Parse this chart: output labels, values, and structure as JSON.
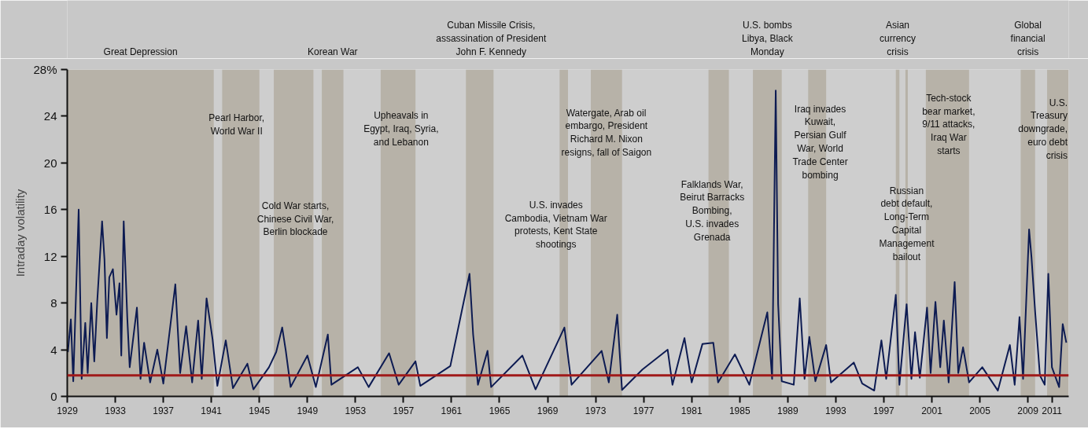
{
  "chart_data": {
    "type": "line",
    "ylabel": "Intraday volatility",
    "xlim": [
      1929,
      2012.4
    ],
    "xticks": [
      1929,
      1933,
      1937,
      1941,
      1945,
      1949,
      1953,
      1957,
      1961,
      1965,
      1969,
      1973,
      1977,
      1981,
      1985,
      1989,
      1993,
      1997,
      2001,
      2005,
      2009,
      2011
    ],
    "ylim": [
      0,
      28
    ],
    "yticks": [
      0,
      4,
      8,
      12,
      16,
      20,
      24,
      {
        "value": 28,
        "label": "28%"
      }
    ],
    "x": [
      1929.05,
      1929.3,
      1929.5,
      1929.95,
      1930.2,
      1930.5,
      1930.7,
      1931.0,
      1931.25,
      1931.5,
      1931.9,
      1932.1,
      1932.3,
      1932.5,
      1932.8,
      1933.1,
      1933.35,
      1933.5,
      1933.7,
      1934.0,
      1934.2,
      1934.8,
      1935.1,
      1935.4,
      1935.9,
      1936.5,
      1937.0,
      1938.0,
      1938.4,
      1938.9,
      1939.4,
      1939.9,
      1940.2,
      1940.6,
      1941.1,
      1941.5,
      1942.2,
      1942.8,
      1944.0,
      1944.5,
      1945.8,
      1946.4,
      1946.9,
      1947.2,
      1947.6,
      1949.0,
      1949.7,
      1950.7,
      1951.0,
      1953.2,
      1954.1,
      1955.8,
      1956.6,
      1958.0,
      1958.4,
      1960.9,
      1962.5,
      1962.8,
      1963.2,
      1964.0,
      1964.3,
      1966.9,
      1968.0,
      1970.4,
      1971.0,
      1973.5,
      1974.1,
      1974.8,
      1975.2,
      1976.9,
      1979.0,
      1979.4,
      1980.4,
      1981.0,
      1981.9,
      1982.8,
      1983.2,
      1984.6,
      1985.8,
      1987.3,
      1987.7,
      1988.0,
      1988.2,
      1988.5,
      1989.5,
      1990.0,
      1990.4,
      1990.8,
      1991.3,
      1992.2,
      1992.6,
      1994.5,
      1995.2,
      1996.2,
      1996.8,
      1997.2,
      1998.0,
      1998.3,
      1998.9,
      1999.3,
      1999.6,
      2000.0,
      2000.6,
      2000.9,
      2001.3,
      2001.7,
      2002.0,
      2002.4,
      2002.9,
      2003.2,
      2003.6,
      2004.1,
      2005.2,
      2006.5,
      2007.5,
      2007.9,
      2008.3,
      2008.6,
      2009.1,
      2009.3,
      2009.6,
      2010.0,
      2010.4,
      2010.7,
      2011.0,
      2011.6,
      2011.9,
      2012.2
    ],
    "series": [
      {
        "color": "#0d1b52",
        "values": [
          3.8,
          6.6,
          1.3,
          16.0,
          1.5,
          6.3,
          2.0,
          8.0,
          3.0,
          8.2,
          15.0,
          11.7,
          5.0,
          10.2,
          10.9,
          7.0,
          9.7,
          3.5,
          15.0,
          6.7,
          2.5,
          7.6,
          1.5,
          4.6,
          1.2,
          4.0,
          1.1,
          9.6,
          2.0,
          6.0,
          1.2,
          6.5,
          1.5,
          8.4,
          4.9,
          0.9,
          4.8,
          0.7,
          2.8,
          0.6,
          2.5,
          3.8,
          5.9,
          3.9,
          0.8,
          3.5,
          0.8,
          5.3,
          1.0,
          2.5,
          0.8,
          3.7,
          1.0,
          3.0,
          0.9,
          2.6,
          10.5,
          5.3,
          1.0,
          3.9,
          0.8,
          3.5,
          0.6,
          5.9,
          1.0,
          3.9,
          1.2,
          7.0,
          0.55,
          2.3,
          4.0,
          1.0,
          5.0,
          1.2,
          4.5,
          4.6,
          1.2,
          3.6,
          1.0,
          7.2,
          1.5,
          26.2,
          7.9,
          1.3,
          1.0,
          8.4,
          1.5,
          5.1,
          1.3,
          4.4,
          1.2,
          2.9,
          1.1,
          0.5,
          4.8,
          1.5,
          8.7,
          1.0,
          7.9,
          1.5,
          5.5,
          1.6,
          7.6,
          2.0,
          8.1,
          2.5,
          6.5,
          1.2,
          9.8,
          2.0,
          4.2,
          1.2,
          2.5,
          0.5,
          4.4,
          1.0,
          6.8,
          1.5,
          14.3,
          11.9,
          7.3,
          1.8,
          1.0,
          10.5,
          2.5,
          0.8,
          6.2,
          4.6
        ]
      }
    ],
    "ref_lines": [
      {
        "axis": "y",
        "value": 1.8,
        "color": "#a01a1a"
      }
    ],
    "bands": [
      {
        "axis": "x",
        "from": 1929,
        "to": 1941.2,
        "label": "Great Depression",
        "color": "#b7b2a8"
      },
      {
        "axis": "x",
        "from": 1941.9,
        "to": 1945,
        "color": "#b7b2a8"
      },
      {
        "axis": "x",
        "from": 1946.2,
        "to": 1949.5,
        "color": "#b7b2a8"
      },
      {
        "axis": "x",
        "from": 1950.2,
        "to": 1952,
        "label": "Korean War",
        "color": "#b7b2a8"
      },
      {
        "axis": "x",
        "from": 1955.1,
        "to": 1958,
        "color": "#b7b2a8"
      },
      {
        "axis": "x",
        "from": 1962.2,
        "to": 1964.5,
        "color": "#b7b2a8"
      },
      {
        "axis": "x",
        "from": 1970,
        "to": 1970.7,
        "color": "#b7b2a8"
      },
      {
        "axis": "x",
        "from": 1972.6,
        "to": 1975.2,
        "color": "#b7b2a8"
      },
      {
        "axis": "x",
        "from": 1982.4,
        "to": 1984.1,
        "color": "#b7b2a8"
      },
      {
        "axis": "x",
        "from": 1986.1,
        "to": 1988.5,
        "label": "U.S. bombs\nLibya, Black\nMonday",
        "color": "#b7b2a8"
      },
      {
        "axis": "x",
        "from": 1990.7,
        "to": 1992.2,
        "color": "#b7b2a8"
      },
      {
        "axis": "x",
        "from": 1998,
        "to": 1998.3,
        "label": "Asian\ncurrency\ncrisis",
        "color": "#b7b2a8"
      },
      {
        "axis": "x",
        "from": 1998.8,
        "to": 1999,
        "color": "#b7b2a8"
      },
      {
        "axis": "x",
        "from": 2000.5,
        "to": 2004.1,
        "color": "#b7b2a8"
      },
      {
        "axis": "x",
        "from": 2008.4,
        "to": 2009.6,
        "label": "Global\nfinancial\ncrisis",
        "color": "#b7b2a8"
      },
      {
        "axis": "x",
        "from": 2010.6,
        "to": 2012.4,
        "color": "#b7b2a8"
      }
    ],
    "annotations": [
      "Pearl Harbor,\nWorld War II",
      "Cold War starts,\nChinese Civil War,\nBerlin blockade",
      "Upheavals in\nEgypt, Iraq, Syria,\nand Lebanon",
      "Watergate, Arab oil\nembargo, President\nRichard M. Nixon\nresigns, fall of Saigon",
      "U.S. invades\nCambodia, Vietnam War\nprotests, Kent State\nshootings",
      "Falklands War,\nBeirut Barracks\nBombing,\nU.S. invades\nGrenada",
      "Iraq invades\nKuwait,\nPersian Gulf\nWar, World\nTrade Center\nbombing",
      "Russian\ndebt default,\nLong-Term\nCapital\nManagement\nbailout",
      "Tech-stock\nbear market,\n9/11 attacks,\nIraq War\nstarts",
      "U.S.\nTreasury\ndowngrade,\neuro debt\ncrisis",
      "Cuban Missile Crisis,\nassassination of President\nJohn F. Kennedy"
    ]
  }
}
